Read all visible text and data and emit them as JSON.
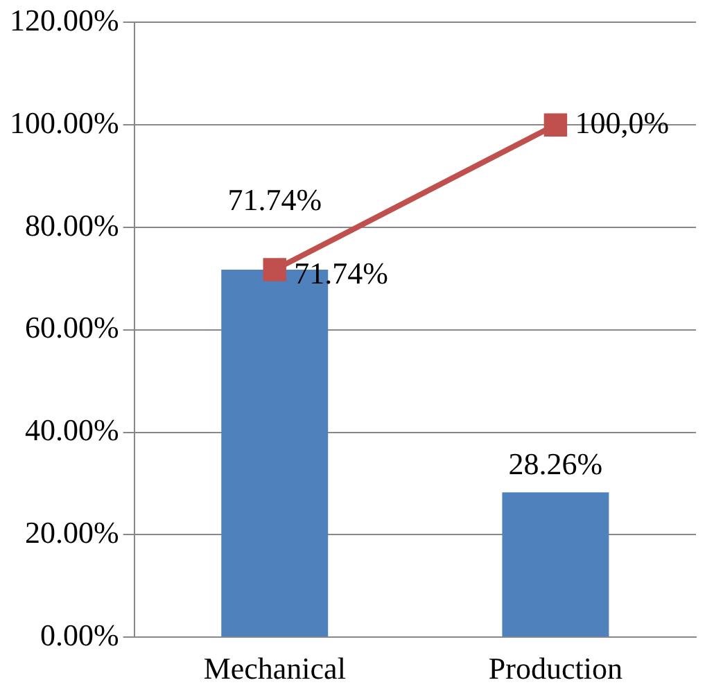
{
  "chart_data": {
    "type": "bar",
    "categories": [
      "Mechanical",
      "Production"
    ],
    "series": [
      {
        "color": "#4f81bd",
        "values": [
          71.74,
          28.26
        ],
        "value_labels": [
          "71.74%",
          "28.26%"
        ]
      },
      {
        "type": "line",
        "color": "#c0504d",
        "values": [
          71.74,
          100
        ],
        "value_labels": [
          "71.74%",
          "100,0%"
        ]
      }
    ],
    "ylim": [
      0,
      120
    ],
    "yticks": [
      {
        "value": 0,
        "label": "0.00%"
      },
      {
        "value": 20,
        "label": "20.00%"
      },
      {
        "value": 40,
        "label": "40.00%"
      },
      {
        "value": 60,
        "label": "60.00%"
      },
      {
        "value": 80,
        "label": "80.00%"
      },
      {
        "value": 100,
        "label": "100.00%"
      },
      {
        "value": 120,
        "label": "120.00%"
      }
    ],
    "grid": "y",
    "legend": false,
    "marker": "square",
    "line_style": "solid"
  }
}
